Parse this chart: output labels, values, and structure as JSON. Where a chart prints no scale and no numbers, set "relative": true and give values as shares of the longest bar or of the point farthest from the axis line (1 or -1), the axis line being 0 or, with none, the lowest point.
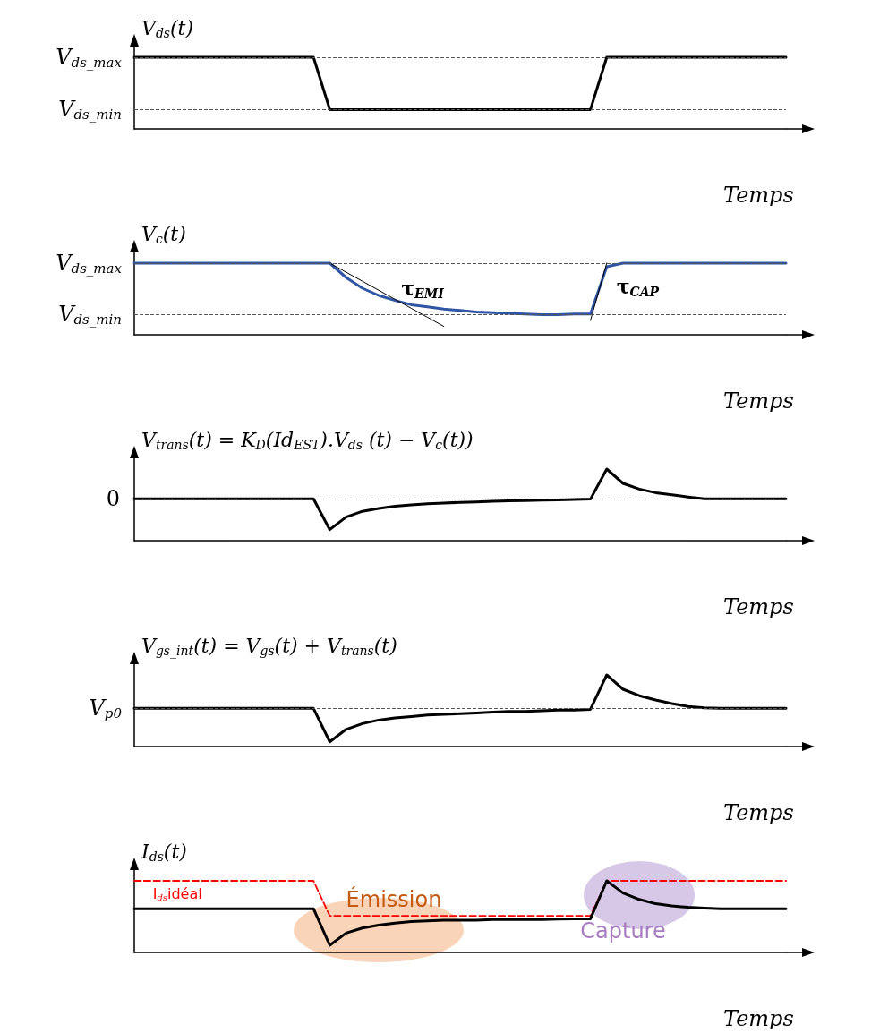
{
  "chart_data": [
    {
      "type": "line",
      "relative": true,
      "ylabel": "V$_{ds}$(t)",
      "xlabel": "Temps",
      "categories": [
        null,
        null,
        null,
        null,
        null,
        null,
        null,
        null,
        null,
        null,
        null,
        null,
        null,
        null,
        null,
        null,
        null,
        null,
        null,
        null,
        null,
        null,
        null,
        null,
        null,
        null,
        null,
        null,
        null,
        null,
        null,
        null,
        null,
        null,
        null,
        null,
        null,
        null,
        null,
        null,
        null
      ],
      "legend": false,
      "marker": "none",
      "series": [
        {
          "color": "#000000",
          "values": [
            1,
            1,
            1,
            1,
            1,
            1,
            1,
            1,
            1,
            1,
            1,
            1,
            0.27,
            0.27,
            0.27,
            0.27,
            0.27,
            0.27,
            0.27,
            0.27,
            0.27,
            0.27,
            0.27,
            0.27,
            0.27,
            0.27,
            0.27,
            0.27,
            0.27,
            1,
            1,
            1,
            1,
            1,
            1,
            1,
            1,
            1,
            1,
            1,
            1
          ]
        }
      ],
      "ref_lines": [
        {
          "axis": "y",
          "value": 1,
          "label": "V$_{ds_max}$",
          "color": "#555555",
          "line_style": "dashed"
        },
        {
          "axis": "y",
          "value": 0.27,
          "label": "V$_{ds_min}$",
          "color": "#555555",
          "line_style": "dashed"
        }
      ]
    },
    {
      "type": "line",
      "relative": true,
      "ylabel": "V$_{c}$(t)",
      "xlabel": "Temps",
      "categories": [
        null,
        null,
        null,
        null,
        null,
        null,
        null,
        null,
        null,
        null,
        null,
        null,
        null,
        null,
        null,
        null,
        null,
        null,
        null,
        null,
        null,
        null,
        null,
        null,
        null,
        null,
        null,
        null,
        null,
        null,
        null,
        null,
        null,
        null,
        null,
        null,
        null,
        null,
        null,
        null,
        null
      ],
      "legend": false,
      "marker": "none",
      "series": [
        {
          "color": "#2f55a4",
          "values": [
            1,
            1,
            1,
            1,
            1,
            1,
            1,
            1,
            1,
            1,
            1,
            1,
            1,
            0.8,
            0.65,
            0.55,
            0.48,
            0.42,
            0.39,
            0.36,
            0.34,
            0.32,
            0.31,
            0.3,
            0.29,
            0.28,
            0.28,
            0.29,
            0.29,
            0.95,
            1,
            1,
            1,
            1,
            1,
            1,
            1,
            1,
            1,
            1,
            1
          ]
        },
        {
          "name": "τ$_{EMI}$",
          "color": "#000000",
          "values": [
            null,
            null,
            null,
            null,
            null,
            null,
            null,
            null,
            null,
            null,
            null,
            null,
            1,
            0.874,
            0.748,
            0.622,
            0.496,
            0.37,
            0.244,
            0.118,
            null,
            null,
            null,
            null,
            null,
            null,
            null,
            null,
            null,
            null,
            null,
            null,
            null,
            null,
            null,
            null,
            null,
            null,
            null,
            null,
            null
          ]
        },
        {
          "name": "τ$_{CAP}$",
          "color": "#000000",
          "values": [
            null,
            null,
            null,
            null,
            null,
            null,
            null,
            null,
            null,
            null,
            null,
            null,
            null,
            null,
            null,
            null,
            null,
            null,
            null,
            null,
            null,
            null,
            null,
            null,
            null,
            null,
            null,
            null,
            0.2,
            1,
            null,
            null,
            null,
            null,
            null,
            null,
            null,
            null,
            null,
            null,
            null
          ]
        }
      ],
      "ref_lines": [
        {
          "axis": "y",
          "value": 1,
          "label": "V$_{ds_max}$",
          "color": "#555555",
          "line_style": "dashed"
        },
        {
          "axis": "y",
          "value": 0.29,
          "label": "V$_{ds_min}$",
          "color": "#555555",
          "line_style": "dashed"
        }
      ]
    },
    {
      "type": "line",
      "relative": true,
      "ylabel": "V$_{trans}$(t) = K$_{D}$(Id$_{EST}$).V$_{ds}$ (t) − V$_{c}$(t))",
      "xlabel": "Temps",
      "categories": [
        null,
        null,
        null,
        null,
        null,
        null,
        null,
        null,
        null,
        null,
        null,
        null,
        null,
        null,
        null,
        null,
        null,
        null,
        null,
        null,
        null,
        null,
        null,
        null,
        null,
        null,
        null,
        null,
        null,
        null,
        null,
        null,
        null,
        null,
        null,
        null,
        null,
        null,
        null,
        null,
        null
      ],
      "legend": false,
      "marker": "none",
      "series": [
        {
          "color": "#000000",
          "values": [
            0.585,
            0.585,
            0.585,
            0.585,
            0.585,
            0.585,
            0.585,
            0.585,
            0.585,
            0.585,
            0.585,
            0.585,
            0.154,
            0.33,
            0.41,
            0.45,
            0.48,
            0.5,
            0.515,
            0.525,
            0.535,
            0.54,
            0.55,
            0.555,
            0.56,
            0.565,
            0.57,
            0.575,
            0.58,
            1,
            0.8,
            0.72,
            0.67,
            0.64,
            0.61,
            0.585,
            0.585,
            0.585,
            0.585,
            0.585,
            0.585
          ]
        }
      ],
      "ref_lines": [
        {
          "axis": "y",
          "value": 0.585,
          "color": "#555555",
          "line_style": "dashed"
        }
      ],
      "annotations": [
        "0"
      ]
    },
    {
      "type": "line",
      "relative": true,
      "ylabel": "V$_{gs_int}$(t) = V$_{gs}$(t) + V$_{trans}$(t)",
      "xlabel": "Temps",
      "categories": [
        null,
        null,
        null,
        null,
        null,
        null,
        null,
        null,
        null,
        null,
        null,
        null,
        null,
        null,
        null,
        null,
        null,
        null,
        null,
        null,
        null,
        null,
        null,
        null,
        null,
        null,
        null,
        null,
        null,
        null,
        null,
        null,
        null,
        null,
        null,
        null,
        null,
        null,
        null,
        null,
        null
      ],
      "legend": false,
      "marker": "none",
      "series": [
        {
          "color": "#000000",
          "values": [
            0.533,
            0.533,
            0.533,
            0.533,
            0.533,
            0.533,
            0.533,
            0.533,
            0.533,
            0.533,
            0.533,
            0.533,
            0.066,
            0.24,
            0.32,
            0.37,
            0.4,
            0.42,
            0.44,
            0.45,
            0.46,
            0.47,
            0.48,
            0.49,
            0.49,
            0.5,
            0.51,
            0.51,
            0.52,
            1,
            0.8,
            0.71,
            0.65,
            0.6,
            0.56,
            0.54,
            0.533,
            0.533,
            0.533,
            0.533,
            0.533
          ]
        }
      ],
      "ref_lines": [
        {
          "axis": "y",
          "value": 0.533,
          "label": "V$_{p0}$",
          "color": "#555555",
          "line_style": "dashed"
        }
      ]
    },
    {
      "type": "line",
      "relative": true,
      "ylabel": "I$_{ds}$(t)",
      "xlabel": "Temps",
      "categories": [
        null,
        null,
        null,
        null,
        null,
        null,
        null,
        null,
        null,
        null,
        null,
        null,
        null,
        null,
        null,
        null,
        null,
        null,
        null,
        null,
        null,
        null,
        null,
        null,
        null,
        null,
        null,
        null,
        null,
        null,
        null,
        null,
        null,
        null,
        null,
        null,
        null,
        null,
        null,
        null,
        null
      ],
      "legend": false,
      "marker": "none",
      "series": [
        {
          "color": "#000000",
          "values": [
            0.61,
            0.61,
            0.61,
            0.61,
            0.61,
            0.61,
            0.61,
            0.61,
            0.61,
            0.61,
            0.61,
            0.61,
            0.1,
            0.27,
            0.34,
            0.38,
            0.41,
            0.43,
            0.44,
            0.45,
            0.45,
            0.45,
            0.46,
            0.46,
            0.46,
            0.46,
            0.465,
            0.47,
            0.47,
            1,
            0.83,
            0.74,
            0.68,
            0.65,
            0.63,
            0.62,
            0.61,
            0.61,
            0.61,
            0.61,
            0.61
          ]
        },
        {
          "name": "I$_{ds}$idéal",
          "color": "#ff0000",
          "line_style": "dashed",
          "values": [
            1,
            1,
            1,
            1,
            1,
            1,
            1,
            1,
            1,
            1,
            1,
            1,
            0.51,
            0.51,
            0.51,
            0.51,
            0.51,
            0.51,
            0.51,
            0.51,
            0.51,
            0.51,
            0.51,
            0.51,
            0.51,
            0.51,
            0.51,
            0.51,
            0.51,
            1,
            1,
            1,
            1,
            1,
            1,
            1,
            1,
            1,
            1,
            1,
            1
          ]
        }
      ],
      "annotations": [
        "Émission",
        "Capture"
      ]
    }
  ]
}
